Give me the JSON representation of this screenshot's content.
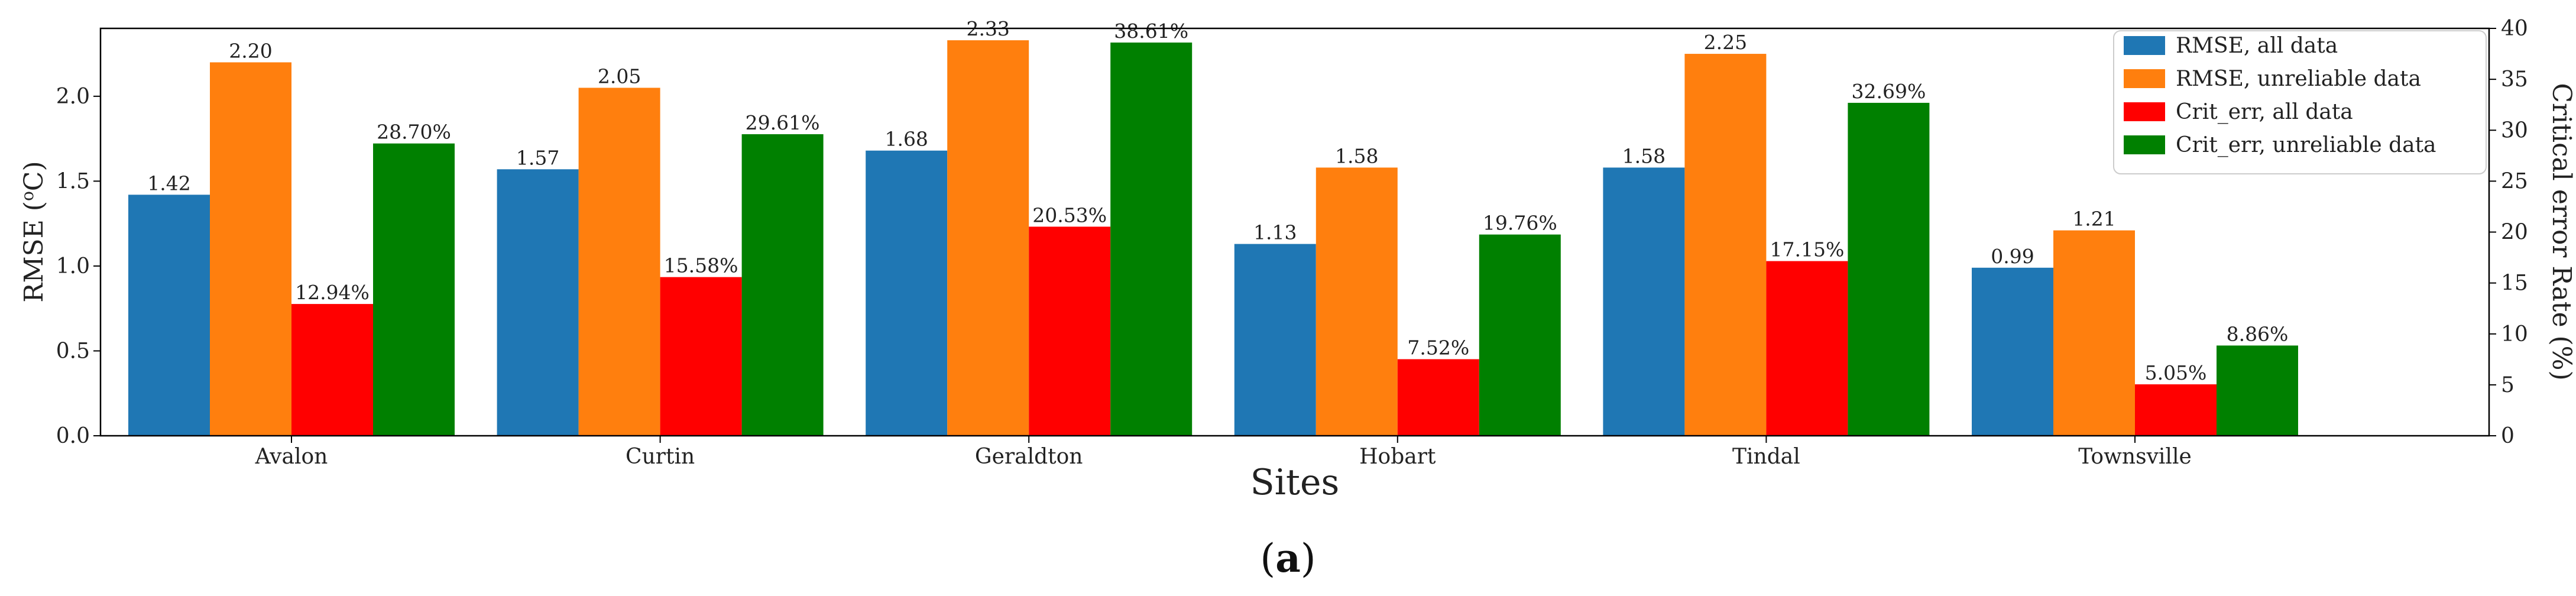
{
  "chart_data": {
    "type": "bar",
    "title": "",
    "xlabel": "Sites",
    "ylabel_left": "RMSE (°C)",
    "ylabel_left_parts": [
      "RMSE (",
      "o",
      "C)"
    ],
    "ylabel_right": "Critical error Rate (%)",
    "categories": [
      "Avalon",
      "Curtin",
      "Geraldton",
      "Hobart",
      "Tindal",
      "Townsville"
    ],
    "ylim_left": [
      0,
      2.4
    ],
    "ylim_right": [
      0,
      40
    ],
    "yticks_left": [
      "0.0",
      "0.5",
      "1.0",
      "1.5",
      "2.0"
    ],
    "yticks_left_values": [
      0,
      0.5,
      1.0,
      1.5,
      2.0
    ],
    "yticks_right": [
      "0",
      "5",
      "10",
      "15",
      "20",
      "25",
      "30",
      "35",
      "40"
    ],
    "yticks_right_values": [
      0,
      5,
      10,
      15,
      20,
      25,
      30,
      35,
      40
    ],
    "legend_position": "top-right",
    "series": [
      {
        "name": "RMSE, all data",
        "axis": "left",
        "color": "#1f77b4",
        "values": [
          1.42,
          1.57,
          1.68,
          1.13,
          1.58,
          0.99
        ],
        "labels": [
          "1.42",
          "1.57",
          "1.68",
          "1.13",
          "1.58",
          "0.99"
        ]
      },
      {
        "name": "RMSE, unreliable data",
        "axis": "left",
        "color": "#ff7f0e",
        "values": [
          2.2,
          2.05,
          2.33,
          1.58,
          2.25,
          1.21
        ],
        "labels": [
          "2.20",
          "2.05",
          "2.33",
          "1.58",
          "2.25",
          "1.21"
        ]
      },
      {
        "name": "Crit_err, all data",
        "axis": "right",
        "color": "#ff0000",
        "values": [
          12.94,
          15.58,
          20.53,
          7.52,
          17.15,
          5.05
        ],
        "labels": [
          "12.94%",
          "15.58%",
          "20.53%",
          "7.52%",
          "17.15%",
          "5.05%"
        ]
      },
      {
        "name": "Crit_err, unreliable data",
        "axis": "right",
        "color": "#008000",
        "values": [
          28.7,
          29.61,
          38.61,
          19.76,
          32.69,
          8.86
        ],
        "labels": [
          "28.70%",
          "29.61%",
          "38.61%",
          "19.76%",
          "32.69%",
          "8.86%"
        ]
      }
    ]
  },
  "caption": {
    "open": "(",
    "letter": "a",
    "close": ")"
  }
}
